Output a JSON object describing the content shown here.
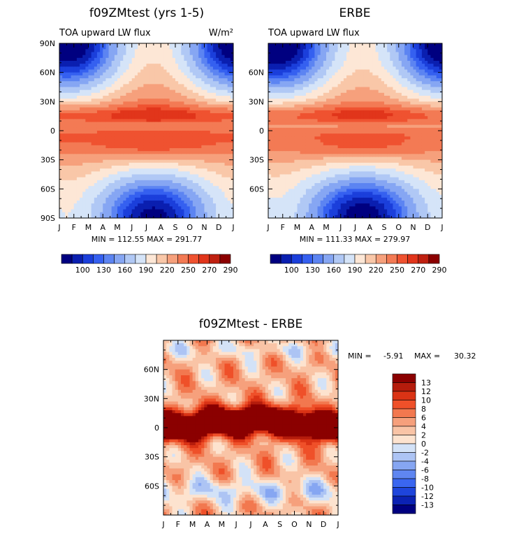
{
  "chart_data": [
    {
      "type": "heatmap",
      "title": "f09ZMtest (yrs 1-5)",
      "subtitle": "TOA upward LW flux",
      "units": "W/m²",
      "x_ticks": [
        "J",
        "F",
        "M",
        "A",
        "M",
        "J",
        "J",
        "A",
        "S",
        "O",
        "N",
        "D",
        "J"
      ],
      "y_ticks": [
        "90N",
        "60N",
        "30N",
        "0",
        "30S",
        "60S",
        "90S"
      ],
      "ylim": [
        -90,
        90
      ],
      "min_label": "MIN = 112.55",
      "max_label": "MAX = 291.77",
      "colorbar_labels": [
        "100",
        "130",
        "160",
        "190",
        "220",
        "250",
        "270",
        "290"
      ]
    },
    {
      "type": "heatmap",
      "title": "ERBE",
      "subtitle": "TOA upward LW flux",
      "x_ticks": [
        "J",
        "F",
        "M",
        "A",
        "M",
        "J",
        "J",
        "A",
        "S",
        "O",
        "N",
        "D",
        "J"
      ],
      "y_ticks": [
        "60N",
        "30N",
        "0",
        "30S",
        "60S"
      ],
      "ylim": [
        -90,
        90
      ],
      "min_label": "MIN = 111.33",
      "max_label": "MAX = 279.97",
      "colorbar_labels": [
        "100",
        "130",
        "160",
        "190",
        "220",
        "250",
        "270",
        "290"
      ]
    },
    {
      "type": "heatmap",
      "title": "f09ZMtest - ERBE",
      "x_ticks": [
        "J",
        "F",
        "M",
        "A",
        "M",
        "J",
        "J",
        "A",
        "S",
        "O",
        "N",
        "D",
        "J"
      ],
      "y_ticks": [
        "60N",
        "30N",
        "0",
        "30S",
        "60S"
      ],
      "ylim": [
        -90,
        90
      ],
      "min_label": "MIN =",
      "min_value": "-5.91",
      "max_label": "MAX =",
      "max_value": "30.32",
      "colorbar_labels": [
        "13",
        "12",
        "10",
        "8",
        "6",
        "4",
        "2",
        "0",
        "-2",
        "-4",
        "-6",
        "-8",
        "-10",
        "-12",
        "-13"
      ]
    }
  ],
  "colors": {
    "abs_scale": [
      "#000080",
      "#0a1fb0",
      "#1b3fdb",
      "#3560f0",
      "#5c84f2",
      "#86a6f3",
      "#b0c8f5",
      "#d5e4f8",
      "#fde7d6",
      "#f9c7a8",
      "#f6a07c",
      "#f37a54",
      "#ef5230",
      "#e1351b",
      "#bf2010",
      "#8b0000"
    ],
    "diff_scale": [
      "#000080",
      "#0b22b3",
      "#1e45dc",
      "#3a66f0",
      "#5f86f1",
      "#86a6f2",
      "#adc4f4",
      "#d3e2f7",
      "#fde3cf",
      "#f9c4a6",
      "#f6a07c",
      "#f2784f",
      "#ef5029",
      "#da3315",
      "#b51c0c",
      "#8b0000"
    ]
  }
}
